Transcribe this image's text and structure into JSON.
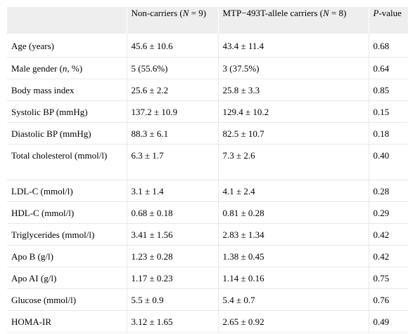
{
  "table": {
    "headers": {
      "col1": "",
      "col2_pre": "Non-carriers (",
      "col2_n": "N",
      "col2_post": " = 9)",
      "col3_pre": "MTP−493T-allele carriers (",
      "col3_n": "N",
      "col3_post": " = 8)",
      "col4_p": "P",
      "col4_post": "-value"
    },
    "rows": [
      {
        "label": "Age (years)",
        "noncarriers": "45.6 ± 10.6",
        "carriers": "43.4 ± 11.4",
        "p": "0.68"
      },
      {
        "label_pre": "Male gender (",
        "label_it": "n",
        "label_post": ", %)",
        "noncarriers": "5 (55.6%)",
        "carriers": "3 (37.5%)",
        "p": "0.64"
      },
      {
        "label": "Body mass index",
        "noncarriers": "25.6 ± 2.2",
        "carriers": "25.8 ± 3.3",
        "p": "0.85"
      },
      {
        "label": "Systolic BP (mmHg)",
        "noncarriers": "137.2 ± 10.9",
        "carriers": "129.4 ± 10.2",
        "p": "0.15"
      },
      {
        "label": "Diastolic BP (mmHg)",
        "noncarriers": "88.3 ± 6.1",
        "carriers": "82.5 ± 10.7",
        "p": "0.18"
      },
      {
        "label": "Total cholesterol (mmol/l)",
        "noncarriers": "6.3 ± 1.7",
        "carriers": "7.3 ± 2.6",
        "p": "0.40"
      },
      {
        "label": "LDL-C (mmol/l)",
        "noncarriers": "3.1 ± 1.4",
        "carriers": "4.1 ± 2.4",
        "p": "0.28"
      },
      {
        "label": "HDL-C (mmol/l)",
        "noncarriers": "0.68 ± 0.18",
        "carriers": "0.81 ± 0.28",
        "p": "0.29"
      },
      {
        "label": "Triglycerides (mmol/l)",
        "noncarriers": "3.41 ± 1.56",
        "carriers": "2.83 ± 1.34",
        "p": "0.42"
      },
      {
        "label": "Apo B (g/l)",
        "noncarriers": "1.23 ± 0.28",
        "carriers": "1.38 ± 0.45",
        "p": "0.42"
      },
      {
        "label": "Apo AI (g/l)",
        "noncarriers": "1.17 ± 0.23",
        "carriers": "1.14 ± 0.16",
        "p": "0.75"
      },
      {
        "label": "Glucose (mmol/l)",
        "noncarriers": "5.5 ± 0.9",
        "carriers": "5.4 ± 0.7",
        "p": "0.76"
      },
      {
        "label": "HOMA-IR",
        "noncarriers": "3.12 ± 1.65",
        "carriers": "2.65 ± 0.92",
        "p": "0.49"
      }
    ]
  }
}
